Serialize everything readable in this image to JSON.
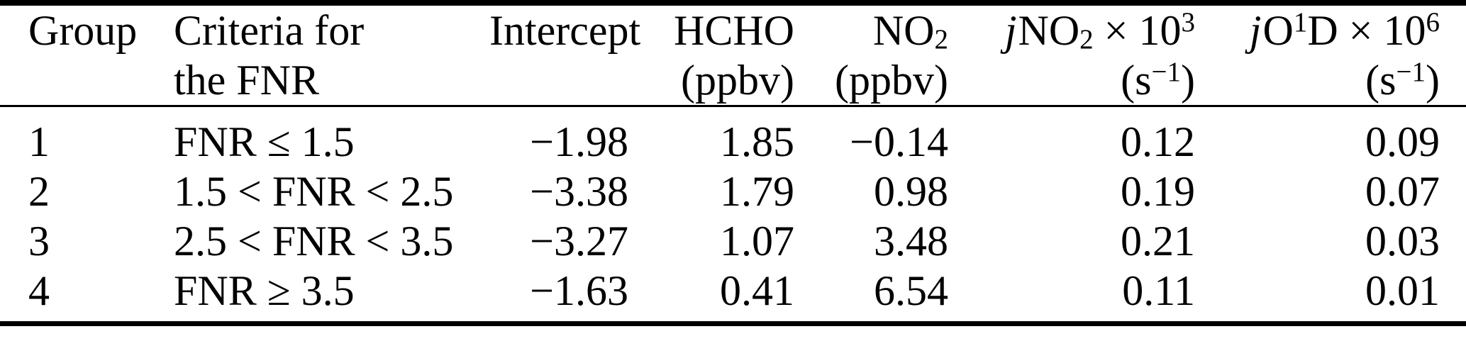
{
  "colors": {
    "text": "#000000",
    "background": "#ffffff",
    "rule": "#000000"
  },
  "table": {
    "header": {
      "group": "Group",
      "criteria_line1": "Criteria for",
      "criteria_line2": "the FNR",
      "intercept": "Intercept",
      "hcho": "HCHO",
      "hcho_unit": "(ppbv)",
      "no2_base": "NO",
      "no2_sub": "2",
      "no2_unit": "(ppbv)",
      "jno2_j": "j",
      "jno2_base": "NO",
      "jno2_sub": "2",
      "jno2_times": " × 10",
      "jno2_exp": "3",
      "jo1d_j": "j",
      "jo1d_base": "O",
      "jo1d_sup": "1",
      "jo1d_d": "D",
      "jo1d_times": " × 10",
      "jo1d_exp": "6",
      "unit_s_open": "(s",
      "unit_s_exp": "−1",
      "unit_s_close": ")"
    },
    "rows": [
      {
        "group": "1",
        "criteria": "FNR ≤ 1.5",
        "intercept": "−1.98",
        "hcho": "1.85",
        "no2": "−0.14",
        "jno2": "0.12",
        "jo1d": "0.09"
      },
      {
        "group": "2",
        "criteria": "1.5 < FNR < 2.5",
        "intercept": "−3.38",
        "hcho": "1.79",
        "no2": "0.98",
        "jno2": "0.19",
        "jo1d": "0.07"
      },
      {
        "group": "3",
        "criteria": "2.5 < FNR < 3.5",
        "intercept": "−3.27",
        "hcho": "1.07",
        "no2": "3.48",
        "jno2": "0.21",
        "jo1d": "0.03"
      },
      {
        "group": "4",
        "criteria": "FNR ≥ 3.5",
        "intercept": "−1.63",
        "hcho": "0.41",
        "no2": "6.54",
        "jno2": "0.11",
        "jo1d": "0.01"
      }
    ]
  }
}
